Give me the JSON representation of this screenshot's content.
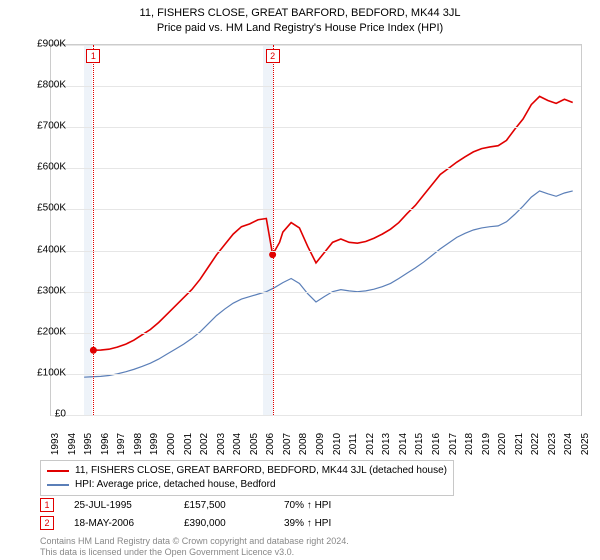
{
  "title1": "11, FISHERS CLOSE, GREAT BARFORD, BEDFORD, MK44 3JL",
  "title2": "Price paid vs. HM Land Registry's House Price Index (HPI)",
  "chart": {
    "type": "line",
    "background_color": "#ffffff",
    "grid_color": "#e6e6e6",
    "border_color": "#cccccc",
    "x_range": [
      1993,
      2025
    ],
    "y_range": [
      0,
      900000
    ],
    "y_ticks": [
      0,
      100000,
      200000,
      300000,
      400000,
      500000,
      600000,
      700000,
      800000,
      900000
    ],
    "y_tick_labels": [
      "£0",
      "£100K",
      "£200K",
      "£300K",
      "£400K",
      "£500K",
      "£600K",
      "£700K",
      "£800K",
      "£900K"
    ],
    "x_ticks": [
      1993,
      1994,
      1995,
      1996,
      1997,
      1998,
      1999,
      2000,
      2001,
      2002,
      2003,
      2004,
      2005,
      2006,
      2007,
      2008,
      2009,
      2010,
      2011,
      2012,
      2013,
      2014,
      2015,
      2016,
      2017,
      2018,
      2019,
      2020,
      2021,
      2022,
      2023,
      2024,
      2025
    ],
    "shaded_bands": [
      {
        "from": 1995.0,
        "to": 1995.5
      },
      {
        "from": 2005.8,
        "to": 2006.4
      }
    ],
    "shade_color": "#eef3f9",
    "series": [
      {
        "name": "subject",
        "color": "#e00000",
        "width": 1.6,
        "points": [
          [
            1995.56,
            157500
          ],
          [
            1996.0,
            158000
          ],
          [
            1996.5,
            160000
          ],
          [
            1997.0,
            165000
          ],
          [
            1997.5,
            172000
          ],
          [
            1998.0,
            182000
          ],
          [
            1998.5,
            195000
          ],
          [
            1999.0,
            208000
          ],
          [
            1999.5,
            225000
          ],
          [
            2000.0,
            245000
          ],
          [
            2000.5,
            265000
          ],
          [
            2001.0,
            285000
          ],
          [
            2001.5,
            305000
          ],
          [
            2002.0,
            330000
          ],
          [
            2002.5,
            360000
          ],
          [
            2003.0,
            390000
          ],
          [
            2003.5,
            415000
          ],
          [
            2004.0,
            440000
          ],
          [
            2004.5,
            458000
          ],
          [
            2005.0,
            465000
          ],
          [
            2005.5,
            475000
          ],
          [
            2006.0,
            478000
          ],
          [
            2006.38,
            390000
          ],
          [
            2006.8,
            420000
          ],
          [
            2007.0,
            445000
          ],
          [
            2007.5,
            468000
          ],
          [
            2008.0,
            455000
          ],
          [
            2008.5,
            410000
          ],
          [
            2009.0,
            370000
          ],
          [
            2009.5,
            395000
          ],
          [
            2010.0,
            420000
          ],
          [
            2010.5,
            428000
          ],
          [
            2011.0,
            420000
          ],
          [
            2011.5,
            418000
          ],
          [
            2012.0,
            422000
          ],
          [
            2012.5,
            430000
          ],
          [
            2013.0,
            440000
          ],
          [
            2013.5,
            452000
          ],
          [
            2014.0,
            468000
          ],
          [
            2014.5,
            490000
          ],
          [
            2015.0,
            510000
          ],
          [
            2015.5,
            535000
          ],
          [
            2016.0,
            560000
          ],
          [
            2016.5,
            585000
          ],
          [
            2017.0,
            600000
          ],
          [
            2017.5,
            615000
          ],
          [
            2018.0,
            628000
          ],
          [
            2018.5,
            640000
          ],
          [
            2019.0,
            648000
          ],
          [
            2019.5,
            652000
          ],
          [
            2020.0,
            655000
          ],
          [
            2020.5,
            668000
          ],
          [
            2021.0,
            695000
          ],
          [
            2021.5,
            720000
          ],
          [
            2022.0,
            755000
          ],
          [
            2022.5,
            775000
          ],
          [
            2023.0,
            765000
          ],
          [
            2023.5,
            758000
          ],
          [
            2024.0,
            768000
          ],
          [
            2024.5,
            760000
          ]
        ],
        "markers": [
          {
            "x": 1995.56,
            "y": 157500
          },
          {
            "x": 2006.38,
            "y": 390000
          }
        ]
      },
      {
        "name": "hpi",
        "color": "#5b7fb8",
        "width": 1.2,
        "points": [
          [
            1995.0,
            92000
          ],
          [
            1995.5,
            93000
          ],
          [
            1996.0,
            94000
          ],
          [
            1996.5,
            96000
          ],
          [
            1997.0,
            100000
          ],
          [
            1997.5,
            105000
          ],
          [
            1998.0,
            111000
          ],
          [
            1998.5,
            118000
          ],
          [
            1999.0,
            126000
          ],
          [
            1999.5,
            136000
          ],
          [
            2000.0,
            148000
          ],
          [
            2000.5,
            160000
          ],
          [
            2001.0,
            172000
          ],
          [
            2001.5,
            186000
          ],
          [
            2002.0,
            202000
          ],
          [
            2002.5,
            222000
          ],
          [
            2003.0,
            242000
          ],
          [
            2003.5,
            258000
          ],
          [
            2004.0,
            272000
          ],
          [
            2004.5,
            282000
          ],
          [
            2005.0,
            288000
          ],
          [
            2005.5,
            294000
          ],
          [
            2006.0,
            300000
          ],
          [
            2006.5,
            310000
          ],
          [
            2007.0,
            322000
          ],
          [
            2007.5,
            332000
          ],
          [
            2008.0,
            320000
          ],
          [
            2008.5,
            295000
          ],
          [
            2009.0,
            275000
          ],
          [
            2009.5,
            288000
          ],
          [
            2010.0,
            300000
          ],
          [
            2010.5,
            305000
          ],
          [
            2011.0,
            302000
          ],
          [
            2011.5,
            300000
          ],
          [
            2012.0,
            302000
          ],
          [
            2012.5,
            306000
          ],
          [
            2013.0,
            312000
          ],
          [
            2013.5,
            320000
          ],
          [
            2014.0,
            332000
          ],
          [
            2014.5,
            345000
          ],
          [
            2015.0,
            358000
          ],
          [
            2015.5,
            372000
          ],
          [
            2016.0,
            388000
          ],
          [
            2016.5,
            404000
          ],
          [
            2017.0,
            418000
          ],
          [
            2017.5,
            432000
          ],
          [
            2018.0,
            442000
          ],
          [
            2018.5,
            450000
          ],
          [
            2019.0,
            455000
          ],
          [
            2019.5,
            458000
          ],
          [
            2020.0,
            460000
          ],
          [
            2020.5,
            470000
          ],
          [
            2021.0,
            488000
          ],
          [
            2021.5,
            508000
          ],
          [
            2022.0,
            530000
          ],
          [
            2022.5,
            545000
          ],
          [
            2023.0,
            538000
          ],
          [
            2023.5,
            532000
          ],
          [
            2024.0,
            540000
          ],
          [
            2024.5,
            545000
          ]
        ]
      }
    ],
    "sale_markers": [
      {
        "num": "1",
        "x": 1995.56
      },
      {
        "num": "2",
        "x": 2006.38
      }
    ]
  },
  "legend": {
    "items": [
      {
        "color": "#e00000",
        "label": "11, FISHERS CLOSE, GREAT BARFORD, BEDFORD, MK44 3JL (detached house)"
      },
      {
        "color": "#5b7fb8",
        "label": "HPI: Average price, detached house, Bedford"
      }
    ]
  },
  "sales": [
    {
      "num": "1",
      "date": "25-JUL-1995",
      "price": "£157,500",
      "delta": "70% ↑ HPI"
    },
    {
      "num": "2",
      "date": "18-MAY-2006",
      "price": "£390,000",
      "delta": "39% ↑ HPI"
    }
  ],
  "footer1": "Contains HM Land Registry data © Crown copyright and database right 2024.",
  "footer2": "This data is licensed under the Open Government Licence v3.0."
}
